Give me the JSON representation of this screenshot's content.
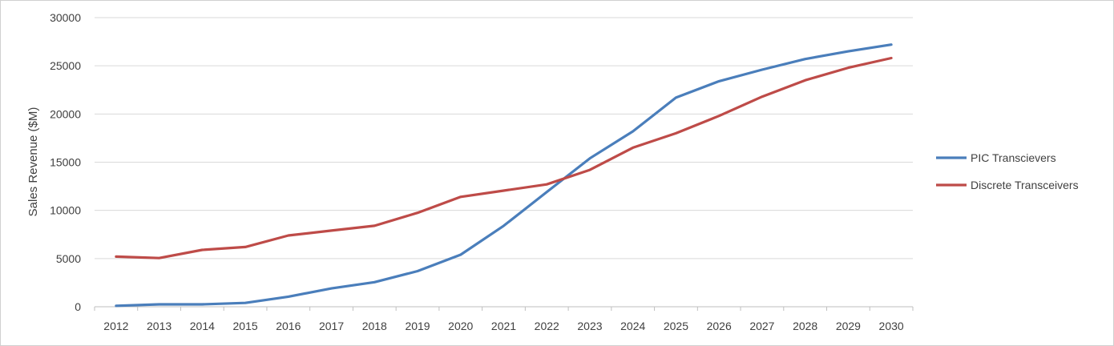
{
  "chart_data": {
    "type": "line",
    "title": "",
    "xlabel": "",
    "ylabel": "Sales Revenue ($M)",
    "ylim": [
      0,
      30000
    ],
    "yticks": [
      0,
      5000,
      10000,
      15000,
      20000,
      25000,
      30000
    ],
    "categories": [
      "2012",
      "2013",
      "2014",
      "2015",
      "2016",
      "2017",
      "2018",
      "2019",
      "2020",
      "2021",
      "2022",
      "2023",
      "2024",
      "2025",
      "2026",
      "2027",
      "2028",
      "2029",
      "2030"
    ],
    "grid": true,
    "legend_position": "right",
    "series": [
      {
        "name": "PIC Transcievers",
        "color": "#4a7ebb",
        "values": [
          100,
          250,
          250,
          400,
          1050,
          1900,
          2550,
          3700,
          5400,
          8400,
          11900,
          15400,
          18200,
          21700,
          23400,
          24600,
          25700,
          26500,
          27200
        ]
      },
      {
        "name": "Discrete Transceivers",
        "color": "#be4b48",
        "values": [
          5200,
          5050,
          5900,
          6200,
          7400,
          7900,
          8400,
          9750,
          11400,
          12050,
          12700,
          14200,
          16500,
          18000,
          19800,
          21800,
          23500,
          24800,
          25800
        ]
      }
    ]
  }
}
